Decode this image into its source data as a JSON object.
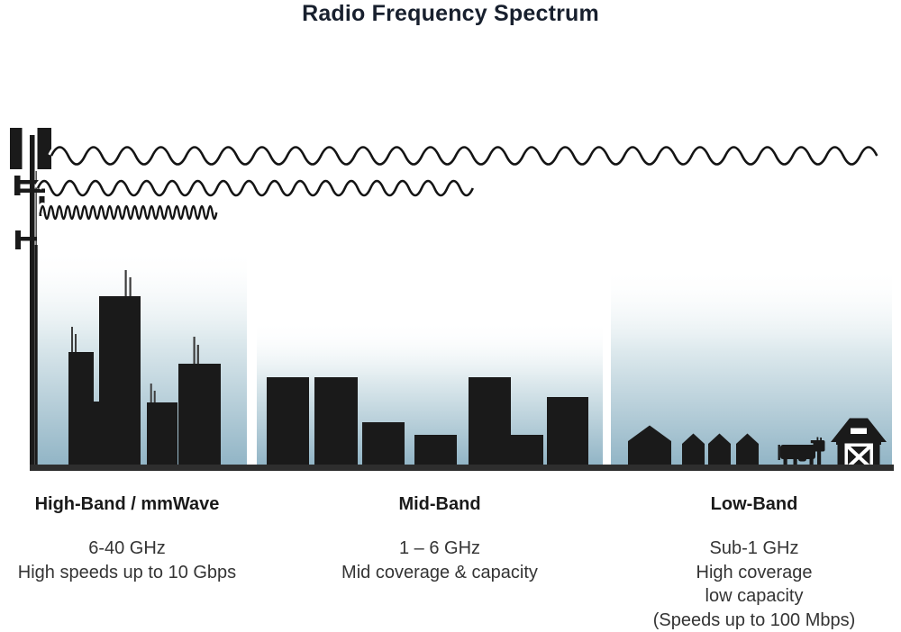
{
  "title": "Radio Frequency Spectrum",
  "bands": [
    {
      "name": "High-Band / mmWave",
      "freq": "6-40 GHz",
      "lines": [
        "High speeds up to 10 Gbps"
      ]
    },
    {
      "name": "Mid-Band",
      "freq": "1 – 6 GHz",
      "lines": [
        "Mid coverage & capacity"
      ]
    },
    {
      "name": "Low-Band",
      "freq": "Sub-1 GHz",
      "lines": [
        "High coverage",
        "low capacity",
        "(Speeds up to 100 Mbps)"
      ]
    }
  ],
  "icons": {
    "tower": "cell-tower-icon",
    "low_band_wave": "long-wavelength-wave-icon",
    "mid_band_wave": "medium-wavelength-wave-icon",
    "high_band_wave": "short-wavelength-wave-icon",
    "high_band_scene": "city-skyscrapers-icon",
    "mid_band_scene": "town-buildings-icon",
    "low_band_houses": "rural-houses-icon",
    "cow": "cow-icon",
    "barn": "barn-icon"
  },
  "colors": {
    "silhouette": "#1a1a1a",
    "sky_bottom": "#92b5c6",
    "ground": "#2e2e2e",
    "title_text": "#18202e",
    "heading_text": "#1a1a1a",
    "body_text": "#343434",
    "background": "#ffffff"
  }
}
